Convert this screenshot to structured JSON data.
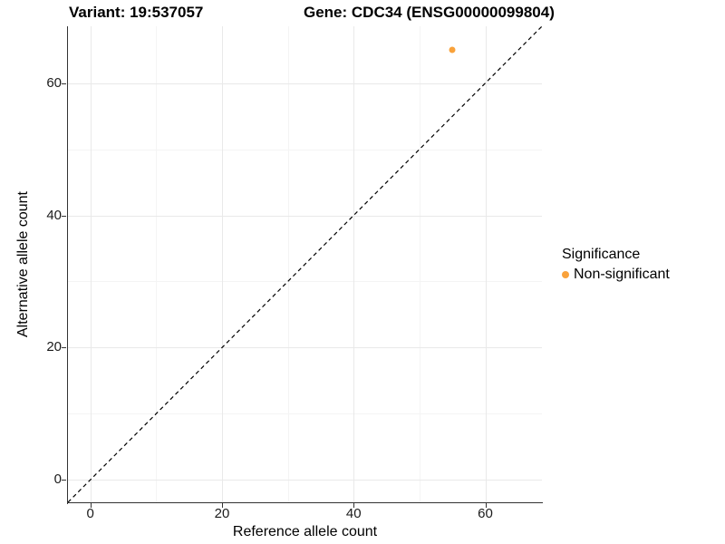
{
  "chart_data": {
    "type": "scatter",
    "title_left": "Variant: 19:537057",
    "title_right": "Gene: CDC34 (ENSG00000099804)",
    "xlabel": "Reference allele count",
    "ylabel": "Alternative allele count",
    "xlim": [
      -3.4,
      68.6
    ],
    "ylim": [
      -3.4,
      68.6
    ],
    "xticks": [
      0,
      20,
      40,
      60
    ],
    "yticks": [
      0,
      20,
      40,
      60
    ],
    "xminor": [
      10,
      30,
      50
    ],
    "yminor": [
      10,
      30,
      50
    ],
    "grid": {
      "enabled": true,
      "major_color": "#e9e9e9",
      "minor_color": "#f4f4f4"
    },
    "identity_line": {
      "equation": "y = x",
      "style": "dashed",
      "color": "#000000"
    },
    "series": [
      {
        "name": "Non-significant",
        "color": "#F9A23B",
        "points": [
          {
            "x": 55,
            "y": 65
          }
        ]
      }
    ],
    "legend": {
      "title": "Significance",
      "position": "right",
      "items": [
        {
          "label": "Non-significant",
          "color": "#F9A23B"
        }
      ]
    }
  }
}
